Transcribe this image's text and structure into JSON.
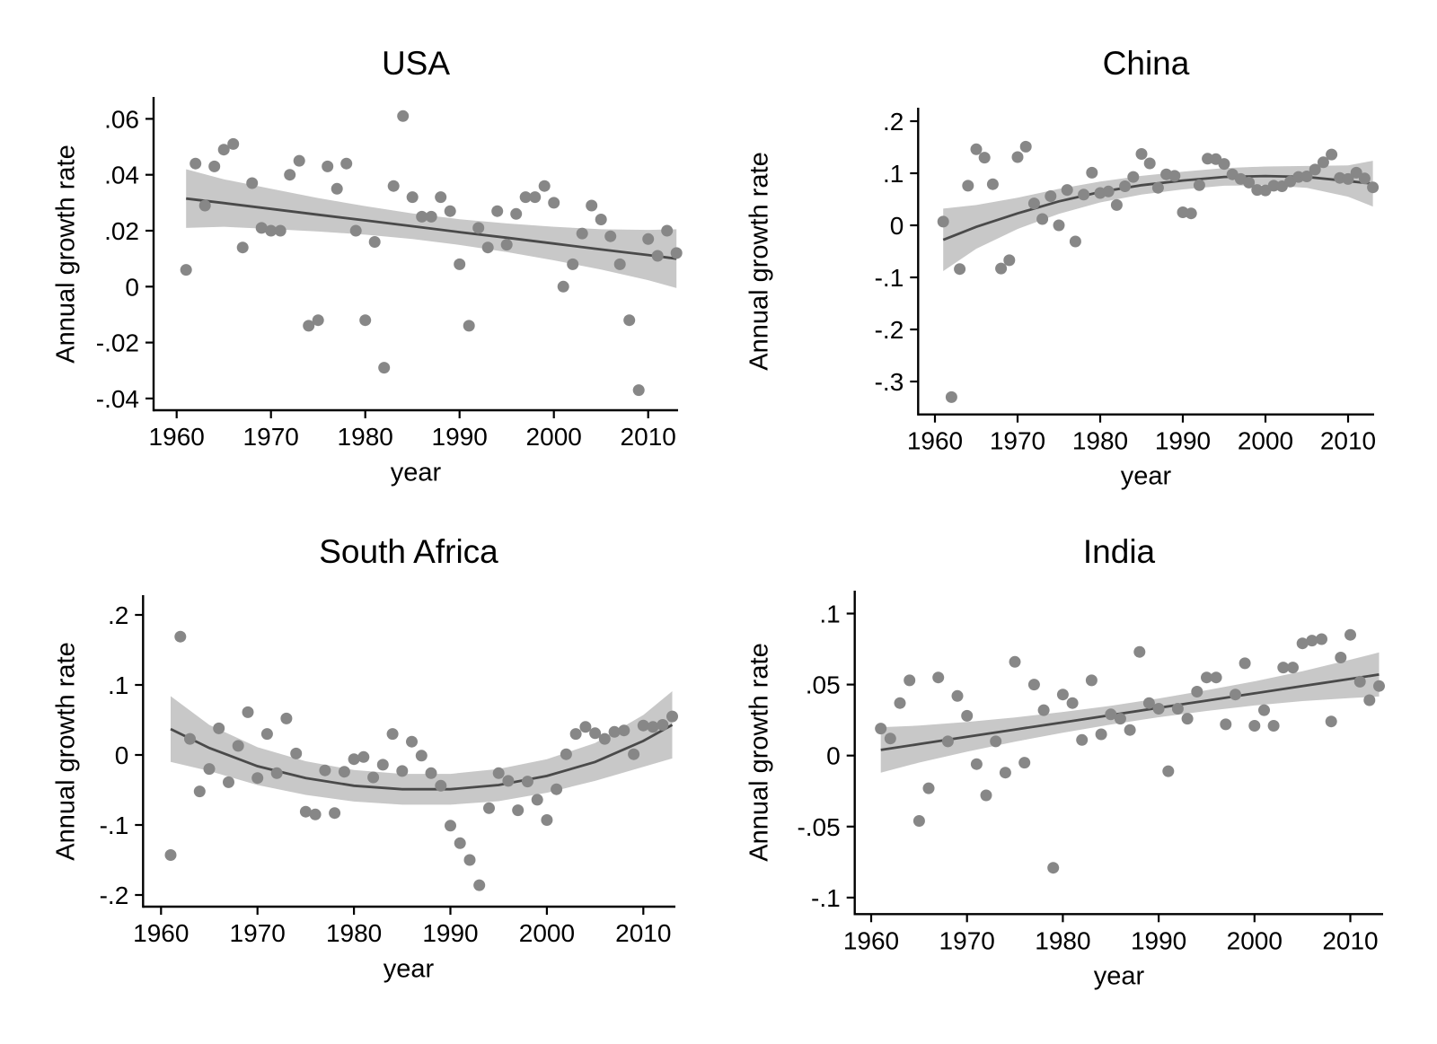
{
  "figure": {
    "kind": "stata-style small multiples: scatter with fitted line and 95% confidence band",
    "background": "#ffffff"
  },
  "colors": {
    "dot": "#878787",
    "fit_line": "#4a4a4a",
    "band": "#c8c8c8",
    "axis": "#000000",
    "text": "#000000"
  },
  "chart_data": [
    {
      "type": "scatter",
      "title": "USA",
      "xlabel": "year",
      "ylabel": "Annual growth rate",
      "legend": "none",
      "grid": "off",
      "fit_type": "linear",
      "xlim": [
        1959.6,
        2014.4
      ],
      "ylim": [
        -0.044,
        0.068
      ],
      "x_ticks": {
        "values": [
          1960,
          1970,
          1980,
          1990,
          2000,
          2010
        ],
        "labels": [
          "1960",
          "1970",
          "1980",
          "1990",
          "2000",
          "2010"
        ]
      },
      "y_ticks": {
        "values": [
          0.06,
          0.04,
          0.02,
          0,
          -0.02,
          -0.04
        ],
        "labels": [
          ".06",
          ".04",
          ".02",
          "0",
          "-.02",
          "-.04"
        ]
      },
      "x": [
        1961,
        1962,
        1963,
        1964,
        1965,
        1966,
        1967,
        1968,
        1969,
        1970,
        1971,
        1972,
        1973,
        1974,
        1975,
        1976,
        1977,
        1978,
        1979,
        1980,
        1981,
        1982,
        1983,
        1984,
        1985,
        1986,
        1987,
        1988,
        1989,
        1990,
        1991,
        1992,
        1993,
        1994,
        1995,
        1996,
        1997,
        1998,
        1999,
        2000,
        2001,
        2002,
        2003,
        2004,
        2005,
        2006,
        2007,
        2008,
        2009,
        2010,
        2011,
        2012,
        2013
      ],
      "y": [
        0.006,
        0.044,
        0.029,
        0.043,
        0.049,
        0.051,
        0.014,
        0.037,
        0.021,
        0.02,
        0.02,
        0.04,
        0.045,
        -0.014,
        -0.012,
        0.043,
        0.035,
        0.044,
        0.02,
        -0.012,
        0.016,
        -0.029,
        0.036,
        0.061,
        0.032,
        0.025,
        0.025,
        0.032,
        0.027,
        0.008,
        -0.014,
        0.021,
        0.014,
        0.027,
        0.015,
        0.026,
        0.032,
        0.032,
        0.036,
        0.03,
        0.0,
        0.008,
        0.019,
        0.029,
        0.024,
        0.018,
        0.008,
        -0.012,
        -0.037,
        0.017,
        0.011,
        0.02,
        0.012
      ],
      "fit": {
        "x": [
          1961,
          1965,
          1970,
          1975,
          1980,
          1985,
          1990,
          1995,
          2000,
          2005,
          2010,
          2013
        ],
        "y": [
          0.0315,
          0.0299,
          0.0278,
          0.0257,
          0.0237,
          0.0216,
          0.0195,
          0.0175,
          0.0154,
          0.0133,
          0.0113,
          0.01
        ]
      },
      "band": {
        "x": [
          1961,
          1965,
          1970,
          1975,
          1980,
          1985,
          1990,
          1995,
          2000,
          2005,
          2010,
          2013
        ],
        "upper": [
          0.042,
          0.0384,
          0.035,
          0.0317,
          0.0288,
          0.0262,
          0.0241,
          0.0226,
          0.0214,
          0.0205,
          0.0203,
          0.0205
        ],
        "lower": [
          0.021,
          0.0214,
          0.0206,
          0.0197,
          0.0186,
          0.017,
          0.0149,
          0.0124,
          0.0094,
          0.0061,
          0.0023,
          -0.0005
        ]
      }
    },
    {
      "type": "scatter",
      "title": "China",
      "xlabel": "year",
      "ylabel": "Annual growth rate",
      "legend": "none",
      "grid": "off",
      "fit_type": "quadratic",
      "xlim": [
        1958.0,
        2014.5
      ],
      "ylim": [
        -0.363,
        0.226
      ],
      "x_ticks": {
        "values": [
          1960,
          1970,
          1980,
          1990,
          2000,
          2010
        ],
        "labels": [
          "1960",
          "1970",
          "1980",
          "1990",
          "2000",
          "2010"
        ]
      },
      "y_ticks": {
        "values": [
          0.2,
          0.1,
          0,
          -0.1,
          -0.2,
          -0.3
        ],
        "labels": [
          ".2",
          ".1",
          "0",
          "-.1",
          "-.2",
          "-.3"
        ]
      },
      "x": [
        1961,
        1962,
        1963,
        1964,
        1965,
        1966,
        1967,
        1968,
        1969,
        1970,
        1971,
        1972,
        1973,
        1974,
        1975,
        1976,
        1977,
        1978,
        1979,
        1980,
        1981,
        1982,
        1983,
        1984,
        1985,
        1986,
        1987,
        1988,
        1989,
        1990,
        1991,
        1992,
        1993,
        1994,
        1995,
        1996,
        1997,
        1998,
        1999,
        2000,
        2001,
        2002,
        2003,
        2004,
        2005,
        2006,
        2007,
        2008,
        2009,
        2010,
        2011,
        2012,
        2013
      ],
      "y": [
        0.007,
        -0.33,
        -0.084,
        0.076,
        0.146,
        0.13,
        0.079,
        -0.083,
        -0.067,
        0.131,
        0.151,
        0.042,
        0.012,
        0.056,
        0.0,
        0.068,
        -0.031,
        0.059,
        0.101,
        0.062,
        0.065,
        0.039,
        0.075,
        0.093,
        0.137,
        0.119,
        0.072,
        0.098,
        0.095,
        0.025,
        0.023,
        0.077,
        0.128,
        0.127,
        0.118,
        0.098,
        0.089,
        0.082,
        0.068,
        0.067,
        0.076,
        0.075,
        0.084,
        0.093,
        0.094,
        0.107,
        0.121,
        0.136,
        0.091,
        0.089,
        0.101,
        0.09,
        0.073
      ],
      "fit": {
        "x": [
          1961,
          1965,
          1970,
          1975,
          1980,
          1985,
          1990,
          1995,
          2000,
          2005,
          2010,
          2013
        ],
        "y": [
          -0.028,
          -0.003,
          0.023,
          0.046,
          0.064,
          0.077,
          0.086,
          0.093,
          0.0946,
          0.093,
          0.085,
          0.08
        ]
      },
      "band": {
        "x": [
          1961,
          1965,
          1970,
          1975,
          1980,
          1985,
          1990,
          1995,
          2000,
          2005,
          2010,
          2013
        ],
        "upper": [
          0.032,
          0.039,
          0.053,
          0.07,
          0.084,
          0.095,
          0.103,
          0.11,
          0.113,
          0.114,
          0.115,
          0.124
        ],
        "lower": [
          -0.088,
          -0.045,
          -0.007,
          0.022,
          0.044,
          0.059,
          0.069,
          0.076,
          0.077,
          0.072,
          0.055,
          0.036
        ]
      }
    },
    {
      "type": "scatter",
      "title": "South Africa",
      "xlabel": "year",
      "ylabel": "Annual growth rate",
      "legend": "none",
      "grid": "off",
      "fit_type": "quadratic",
      "xlim": [
        1958.1,
        2014.3
      ],
      "ylim": [
        -0.217,
        0.228
      ],
      "x_ticks": {
        "values": [
          1960,
          1970,
          1980,
          1990,
          2000,
          2010
        ],
        "labels": [
          "1960",
          "1970",
          "1980",
          "1990",
          "2000",
          "2010"
        ]
      },
      "y_ticks": {
        "values": [
          0.2,
          0.1,
          0,
          -0.1,
          -0.2
        ],
        "labels": [
          ".2",
          ".1",
          "0",
          "-.1",
          "-.2"
        ]
      },
      "x": [
        1961,
        1962,
        1963,
        1964,
        1965,
        1966,
        1967,
        1968,
        1969,
        1970,
        1971,
        1972,
        1973,
        1974,
        1975,
        1976,
        1977,
        1978,
        1979,
        1980,
        1981,
        1982,
        1983,
        1984,
        1985,
        1986,
        1987,
        1988,
        1989,
        1990,
        1991,
        1992,
        1993,
        1994,
        1995,
        1996,
        1997,
        1998,
        1999,
        2000,
        2001,
        2002,
        2003,
        2004,
        2005,
        2006,
        2007,
        2008,
        2009,
        2010,
        2011,
        2012,
        2013
      ],
      "y": [
        -0.143,
        0.169,
        0.023,
        -0.052,
        -0.02,
        0.038,
        -0.039,
        0.013,
        0.061,
        -0.033,
        0.03,
        -0.026,
        0.052,
        0.002,
        -0.081,
        -0.085,
        -0.022,
        -0.083,
        -0.024,
        -0.006,
        -0.003,
        -0.032,
        -0.014,
        0.03,
        -0.023,
        0.019,
        -0.001,
        -0.026,
        -0.044,
        -0.101,
        -0.126,
        -0.15,
        -0.186,
        -0.076,
        -0.026,
        -0.037,
        -0.079,
        -0.038,
        -0.064,
        -0.093,
        -0.049,
        0.001,
        0.03,
        0.04,
        0.031,
        0.023,
        0.033,
        0.035,
        0.001,
        0.042,
        0.04,
        0.043,
        0.055
      ],
      "fit": {
        "x": [
          1961,
          1965,
          1970,
          1975,
          1980,
          1985,
          1990,
          1995,
          2000,
          2005,
          2010,
          2013
        ],
        "y": [
          0.037,
          0.01,
          -0.016,
          -0.033,
          -0.044,
          -0.049,
          -0.049,
          -0.043,
          -0.03,
          -0.01,
          0.02,
          0.043
        ]
      },
      "band": {
        "x": [
          1961,
          1965,
          1970,
          1975,
          1980,
          1985,
          1990,
          1995,
          2000,
          2005,
          2010,
          2013
        ],
        "upper": [
          0.084,
          0.043,
          0.011,
          -0.009,
          -0.0215,
          -0.027,
          -0.027,
          -0.02,
          -0.006,
          0.017,
          0.057,
          0.091
        ],
        "lower": [
          -0.01,
          -0.023,
          -0.043,
          -0.057,
          -0.0665,
          -0.071,
          -0.071,
          -0.066,
          -0.054,
          -0.037,
          -0.017,
          -0.005
        ]
      }
    },
    {
      "type": "scatter",
      "title": "India",
      "xlabel": "year",
      "ylabel": "Annual growth rate",
      "legend": "none",
      "grid": "off",
      "fit_type": "linear",
      "xlim": [
        1958.3,
        2014.4
      ],
      "ylim": [
        -0.112,
        0.116
      ],
      "x_ticks": {
        "values": [
          1960,
          1970,
          1980,
          1990,
          2000,
          2010
        ],
        "labels": [
          "1960",
          "1970",
          "1980",
          "1990",
          "2000",
          "2010"
        ]
      },
      "y_ticks": {
        "values": [
          0.1,
          0.05,
          0,
          -0.05,
          -0.1
        ],
        "labels": [
          ".1",
          ".05",
          "0",
          "-.05",
          "-.1"
        ]
      },
      "x": [
        1961,
        1962,
        1963,
        1964,
        1965,
        1966,
        1967,
        1968,
        1969,
        1970,
        1971,
        1972,
        1973,
        1974,
        1975,
        1976,
        1977,
        1978,
        1979,
        1980,
        1981,
        1982,
        1983,
        1984,
        1985,
        1986,
        1987,
        1988,
        1989,
        1990,
        1991,
        1992,
        1993,
        1994,
        1995,
        1996,
        1997,
        1998,
        1999,
        2000,
        2001,
        2002,
        2003,
        2004,
        2005,
        2006,
        2007,
        2008,
        2009,
        2010,
        2011,
        2012,
        2013
      ],
      "y": [
        0.019,
        0.012,
        0.037,
        0.053,
        -0.046,
        -0.023,
        0.055,
        0.01,
        0.042,
        0.028,
        -0.006,
        -0.028,
        0.01,
        -0.012,
        0.066,
        -0.005,
        0.05,
        0.032,
        -0.079,
        0.043,
        0.037,
        0.011,
        0.053,
        0.015,
        0.029,
        0.026,
        0.018,
        0.073,
        0.037,
        0.033,
        -0.011,
        0.033,
        0.026,
        0.045,
        0.055,
        0.055,
        0.022,
        0.043,
        0.065,
        0.021,
        0.032,
        0.021,
        0.062,
        0.062,
        0.079,
        0.081,
        0.082,
        0.024,
        0.069,
        0.085,
        0.052,
        0.039,
        0.049
      ],
      "fit": {
        "x": [
          1961,
          1965,
          1970,
          1975,
          1980,
          1985,
          1990,
          1995,
          2000,
          2005,
          2010,
          2013
        ],
        "y": [
          0.004,
          0.0081,
          0.0132,
          0.0183,
          0.0234,
          0.0285,
          0.0336,
          0.0387,
          0.0438,
          0.0489,
          0.054,
          0.0571
        ]
      },
      "band": {
        "x": [
          1961,
          1965,
          1970,
          1975,
          1980,
          1985,
          1990,
          1995,
          2000,
          2005,
          2010,
          2013
        ],
        "upper": [
          0.02,
          0.0211,
          0.0237,
          0.0268,
          0.0307,
          0.0351,
          0.0402,
          0.046,
          0.0523,
          0.0594,
          0.0675,
          0.0726
        ],
        "lower": [
          -0.012,
          -0.0049,
          0.0027,
          0.0098,
          0.0161,
          0.0219,
          0.027,
          0.0314,
          0.0353,
          0.0384,
          0.0405,
          0.0416
        ]
      }
    }
  ]
}
